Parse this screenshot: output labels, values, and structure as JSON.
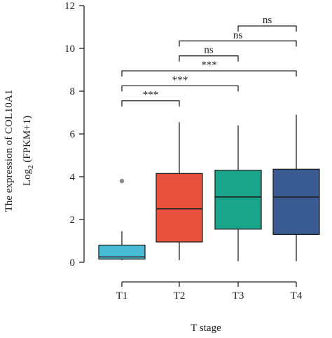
{
  "chart_data": {
    "type": "box",
    "title": "",
    "xlabel": "T stage",
    "ylabel_line1": "The expression of COL10A1",
    "ylabel_line2_prefix": "Log",
    "ylabel_line2_sub": "2",
    "ylabel_line2_suffix": " (FPKM+1)",
    "ylim": [
      0,
      12
    ],
    "yticks": [
      "0",
      "2",
      "4",
      "6",
      "8",
      "10",
      "12"
    ],
    "ytick_values": [
      0,
      2,
      4,
      6,
      8,
      10,
      12
    ],
    "categories": [
      "T1",
      "T2",
      "T3",
      "T4"
    ],
    "boxes": [
      {
        "category": "T1",
        "min": 0.1,
        "q1": 0.15,
        "median": 0.25,
        "q3": 0.8,
        "max": 1.45,
        "outliers": [
          3.8
        ],
        "color": "#4bbcd6"
      },
      {
        "category": "T2",
        "min": 0.1,
        "q1": 0.95,
        "median": 2.5,
        "q3": 4.15,
        "max": 6.55,
        "outliers": [],
        "color": "#e8513d"
      },
      {
        "category": "T3",
        "min": 0.05,
        "q1": 1.55,
        "median": 3.05,
        "q3": 4.3,
        "max": 6.4,
        "outliers": [],
        "color": "#18a589"
      },
      {
        "category": "T4",
        "min": 0.05,
        "q1": 1.3,
        "median": 3.05,
        "q3": 4.35,
        "max": 6.9,
        "outliers": [],
        "color": "#3a5a92"
      }
    ],
    "outlier_color": "#8a8a8a",
    "significance": [
      {
        "from": "T1",
        "to": "T2",
        "y": 7.55,
        "label": "***"
      },
      {
        "from": "T1",
        "to": "T3",
        "y": 8.25,
        "label": "***"
      },
      {
        "from": "T1",
        "to": "T4",
        "y": 8.95,
        "label": "***"
      },
      {
        "from": "T2",
        "to": "T3",
        "y": 9.65,
        "label": "ns"
      },
      {
        "from": "T2",
        "to": "T4",
        "y": 10.35,
        "label": "ns"
      },
      {
        "from": "T3",
        "to": "T4",
        "y": 11.05,
        "label": "ns"
      }
    ]
  }
}
